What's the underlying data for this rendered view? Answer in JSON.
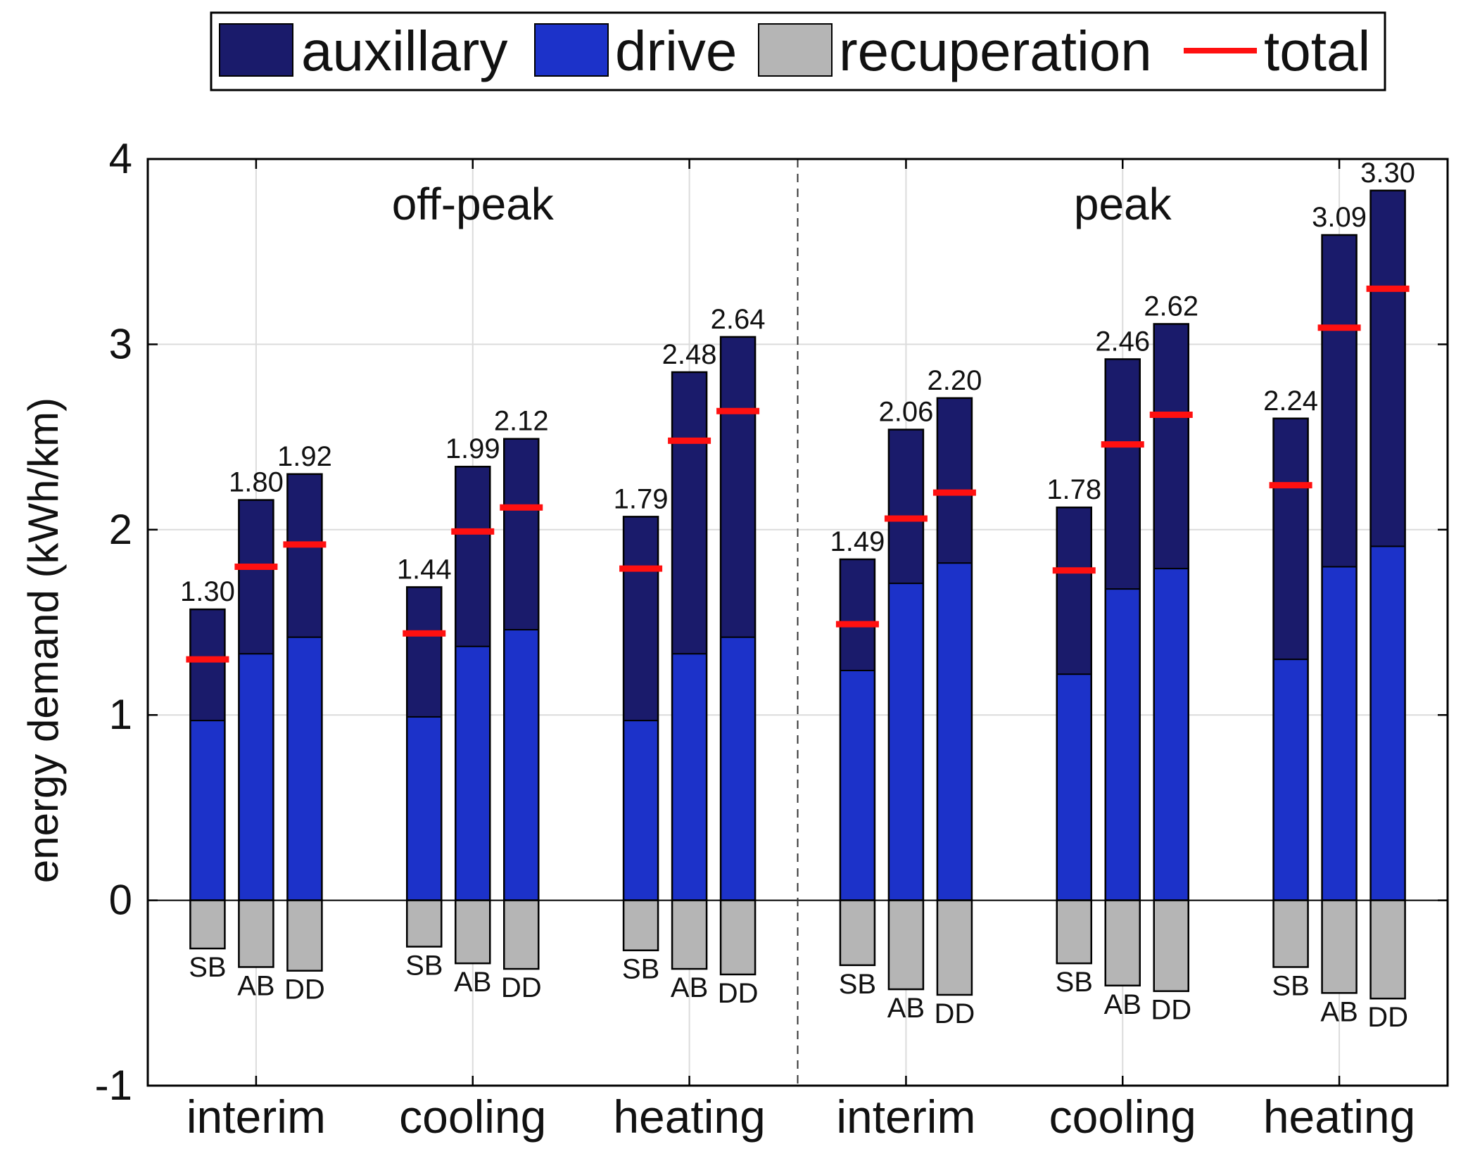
{
  "chart_data": {
    "type": "bar",
    "stacked": true,
    "ylabel": "energy demand (kWh/km)",
    "ylim": [
      -1,
      4
    ],
    "yticks": [
      -1,
      0,
      1,
      2,
      3,
      4
    ],
    "grid": true,
    "legend_position": "top",
    "legend": [
      {
        "key": "auxillary",
        "label": "auxillary",
        "kind": "bar"
      },
      {
        "key": "drive",
        "label": "drive",
        "kind": "bar"
      },
      {
        "key": "recuperation",
        "label": "recuperation",
        "kind": "bar"
      },
      {
        "key": "total",
        "label": "total",
        "kind": "line"
      }
    ],
    "series_colors": {
      "auxillary": "#1a1b6b",
      "drive": "#1c32c9",
      "recuperation": "#b5b5b5",
      "total": "#ff1010"
    },
    "section_labels": [
      "off-peak",
      "peak"
    ],
    "categories": [
      "interim",
      "cooling",
      "heating",
      "interim",
      "cooling",
      "heating"
    ],
    "groups": [
      {
        "category": "interim",
        "section": "off-peak",
        "bars": [
          {
            "name": "SB",
            "drive": 0.97,
            "auxillary": 0.6,
            "recuperation": -0.26,
            "total": 1.3,
            "total_label": "1.30"
          },
          {
            "name": "AB",
            "drive": 1.33,
            "auxillary": 0.83,
            "recuperation": -0.36,
            "total": 1.8,
            "total_label": "1.80"
          },
          {
            "name": "DD",
            "drive": 1.42,
            "auxillary": 0.88,
            "recuperation": -0.38,
            "total": 1.92,
            "total_label": "1.92"
          }
        ]
      },
      {
        "category": "cooling",
        "section": "off-peak",
        "bars": [
          {
            "name": "SB",
            "drive": 0.99,
            "auxillary": 0.7,
            "recuperation": -0.25,
            "total": 1.44,
            "total_label": "1.44"
          },
          {
            "name": "AB",
            "drive": 1.37,
            "auxillary": 0.97,
            "recuperation": -0.34,
            "total": 1.99,
            "total_label": "1.99"
          },
          {
            "name": "DD",
            "drive": 1.46,
            "auxillary": 1.03,
            "recuperation": -0.37,
            "total": 2.12,
            "total_label": "2.12"
          }
        ]
      },
      {
        "category": "heating",
        "section": "off-peak",
        "bars": [
          {
            "name": "SB",
            "drive": 0.97,
            "auxillary": 1.1,
            "recuperation": -0.27,
            "total": 1.79,
            "total_label": "1.79"
          },
          {
            "name": "AB",
            "drive": 1.33,
            "auxillary": 1.52,
            "recuperation": -0.37,
            "total": 2.48,
            "total_label": "2.48"
          },
          {
            "name": "DD",
            "drive": 1.42,
            "auxillary": 1.62,
            "recuperation": -0.4,
            "total": 2.64,
            "total_label": "2.64"
          }
        ]
      },
      {
        "category": "interim",
        "section": "peak",
        "bars": [
          {
            "name": "SB",
            "drive": 1.24,
            "auxillary": 0.6,
            "recuperation": -0.35,
            "total": 1.49,
            "total_label": "1.49"
          },
          {
            "name": "AB",
            "drive": 1.71,
            "auxillary": 0.83,
            "recuperation": -0.48,
            "total": 2.06,
            "total_label": "2.06"
          },
          {
            "name": "DD",
            "drive": 1.82,
            "auxillary": 0.89,
            "recuperation": -0.51,
            "total": 2.2,
            "total_label": "2.20"
          }
        ]
      },
      {
        "category": "cooling",
        "section": "peak",
        "bars": [
          {
            "name": "SB",
            "drive": 1.22,
            "auxillary": 0.9,
            "recuperation": -0.34,
            "total": 1.78,
            "total_label": "1.78"
          },
          {
            "name": "AB",
            "drive": 1.68,
            "auxillary": 1.24,
            "recuperation": -0.46,
            "total": 2.46,
            "total_label": "2.46"
          },
          {
            "name": "DD",
            "drive": 1.79,
            "auxillary": 1.32,
            "recuperation": -0.49,
            "total": 2.62,
            "total_label": "2.62"
          }
        ]
      },
      {
        "category": "heating",
        "section": "peak",
        "bars": [
          {
            "name": "SB",
            "drive": 1.3,
            "auxillary": 1.3,
            "recuperation": -0.36,
            "total": 2.24,
            "total_label": "2.24"
          },
          {
            "name": "AB",
            "drive": 1.8,
            "auxillary": 1.79,
            "recuperation": -0.5,
            "total": 3.09,
            "total_label": "3.09"
          },
          {
            "name": "DD",
            "drive": 1.91,
            "auxillary": 1.92,
            "recuperation": -0.53,
            "total": 3.3,
            "total_label": "3.30"
          }
        ]
      }
    ]
  }
}
